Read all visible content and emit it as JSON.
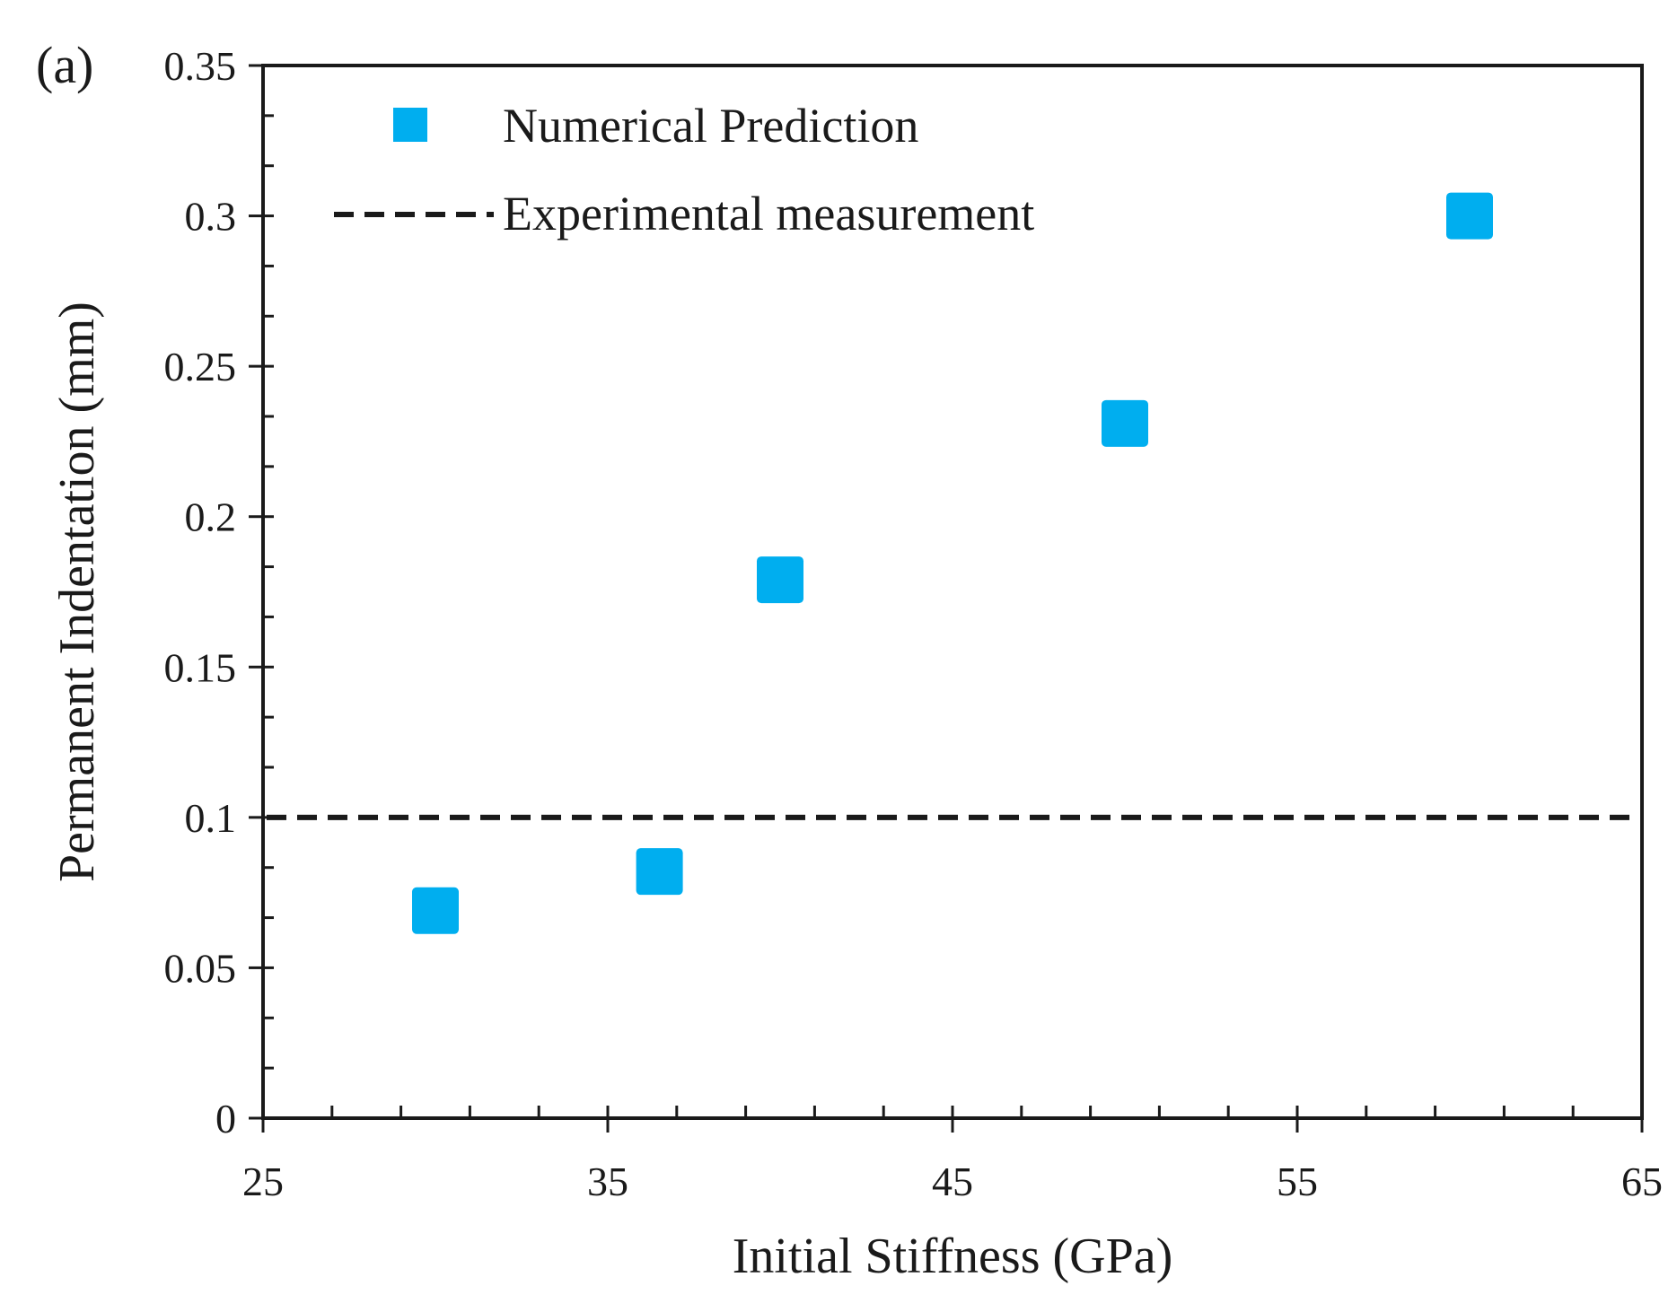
{
  "chart_data": {
    "type": "scatter",
    "panel_label": "(a)",
    "xlabel": "Initial Stiffness (GPa)",
    "ylabel": "Permanent Indentation (mm)",
    "xlim": [
      25,
      65
    ],
    "ylim": [
      0,
      0.35
    ],
    "x_ticks": [
      25,
      35,
      45,
      55,
      65
    ],
    "x_tick_labels": [
      "25",
      "35",
      "45",
      "55",
      "65"
    ],
    "y_ticks": [
      0,
      0.05,
      0.1,
      0.15,
      0.2,
      0.25,
      0.3,
      0.35
    ],
    "y_tick_labels": [
      "0",
      "0.05",
      "0.1",
      "0.15",
      "0.2",
      "0.25",
      "0.3",
      "0.35"
    ],
    "grid": false,
    "legend_position": "top-left",
    "series": [
      {
        "name": "Numerical Prediction",
        "marker": "square",
        "color": "#00aeef",
        "x": [
          30,
          36.5,
          40,
          50,
          60
        ],
        "y": [
          0.069,
          0.082,
          0.179,
          0.231,
          0.3
        ]
      }
    ],
    "reference_lines": [
      {
        "name": "Experimental measurement",
        "orientation": "horizontal",
        "y": 0.1,
        "style": "dashed",
        "color": "#1a1a1a"
      }
    ]
  }
}
